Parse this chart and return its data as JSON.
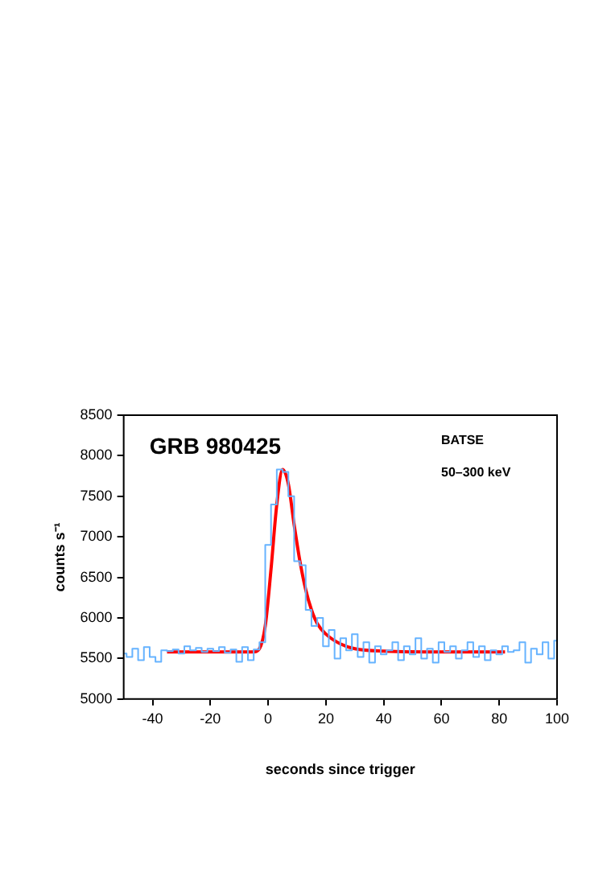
{
  "chart_data": {
    "type": "line",
    "annotations": [
      "GRB 980425",
      "BATSE",
      "50–300 keV"
    ],
    "xlabel": "seconds since trigger",
    "ylabel": "counts s⁻¹",
    "xlim": [
      -50,
      100
    ],
    "xticks": [
      -40,
      -20,
      0,
      20,
      40,
      60,
      80,
      100
    ],
    "ylim": [
      5000,
      8500
    ],
    "yticks": [
      5000,
      5500,
      6000,
      6500,
      7000,
      7500,
      8000,
      8500
    ],
    "grid": false,
    "legend": false,
    "series": [
      {
        "type": "step",
        "color": "#66b3ff",
        "x": [
          -50,
          -48,
          -46,
          -44,
          -42,
          -40,
          -38,
          -36,
          -34,
          -32,
          -30,
          -28,
          -26,
          -24,
          -22,
          -20,
          -18,
          -16,
          -14,
          -12,
          -10,
          -8,
          -6,
          -4,
          -2,
          0,
          2,
          4,
          6,
          8,
          10,
          12,
          14,
          16,
          18,
          20,
          22,
          24,
          26,
          28,
          30,
          32,
          34,
          36,
          38,
          40,
          42,
          44,
          46,
          48,
          50,
          52,
          54,
          56,
          58,
          60,
          62,
          64,
          66,
          68,
          70,
          72,
          74,
          76,
          78,
          80,
          82,
          84,
          86,
          88,
          90,
          92,
          94,
          96,
          98,
          100
        ],
        "values": [
          5560,
          5520,
          5620,
          5480,
          5640,
          5520,
          5460,
          5600,
          5590,
          5610,
          5560,
          5650,
          5600,
          5630,
          5580,
          5620,
          5590,
          5640,
          5570,
          5610,
          5460,
          5640,
          5480,
          5610,
          5700,
          6900,
          7400,
          7830,
          7800,
          7500,
          6700,
          6650,
          6100,
          5900,
          6000,
          5650,
          5850,
          5500,
          5750,
          5600,
          5800,
          5520,
          5700,
          5450,
          5650,
          5550,
          5600,
          5700,
          5480,
          5650,
          5550,
          5750,
          5500,
          5620,
          5450,
          5700,
          5580,
          5650,
          5500,
          5600,
          5700,
          5520,
          5650,
          5480,
          5600,
          5550,
          5650,
          5580,
          5600,
          5700,
          5450,
          5620,
          5550,
          5700,
          5500,
          5720
        ]
      },
      {
        "type": "line",
        "color": "#ff0000",
        "x": [
          -35,
          -5,
          -3,
          -1,
          1,
          3,
          5,
          7,
          9,
          11,
          13,
          15,
          17,
          20,
          25,
          30,
          40,
          60,
          82
        ],
        "values": [
          5580,
          5580,
          5620,
          5900,
          6600,
          7400,
          7830,
          7650,
          7150,
          6700,
          6350,
          6100,
          5930,
          5800,
          5680,
          5620,
          5590,
          5580,
          5580
        ]
      }
    ]
  }
}
